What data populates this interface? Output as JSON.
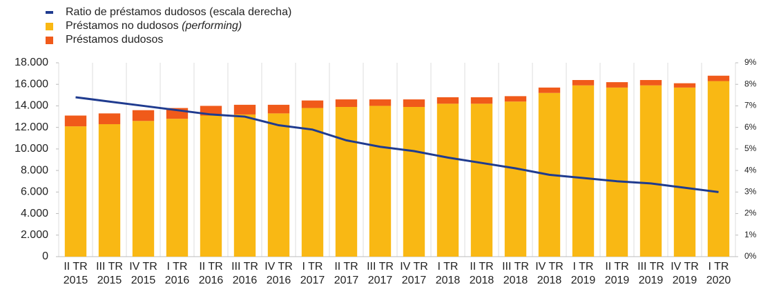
{
  "chart_data": {
    "type": "bar",
    "categories": [
      [
        "II TR",
        "2015"
      ],
      [
        "III TR",
        "2015"
      ],
      [
        "IV TR",
        "2015"
      ],
      [
        "I TR",
        "2016"
      ],
      [
        "II TR",
        "2016"
      ],
      [
        "III TR",
        "2016"
      ],
      [
        "IV TR",
        "2016"
      ],
      [
        "I TR",
        "2017"
      ],
      [
        "II TR",
        "2017"
      ],
      [
        "III TR",
        "2017"
      ],
      [
        "IV TR",
        "2017"
      ],
      [
        "I TR",
        "2018"
      ],
      [
        "II TR",
        "2018"
      ],
      [
        "III TR",
        "2018"
      ],
      [
        "IV TR",
        "2018"
      ],
      [
        "I TR",
        "2019"
      ],
      [
        "II TR",
        "2019"
      ],
      [
        "III TR",
        "2019"
      ],
      [
        "IV TR",
        "2019"
      ],
      [
        "I TR",
        "2020"
      ]
    ],
    "series": [
      {
        "name": "Ratio de préstamos dudosos (escala derecha)",
        "type": "line",
        "axis": "y2",
        "color": "#1f3b8f",
        "values": [
          7.4,
          7.2,
          7.0,
          6.8,
          6.6,
          6.5,
          6.1,
          5.9,
          5.4,
          5.1,
          4.9,
          4.6,
          4.35,
          4.1,
          3.8,
          3.65,
          3.5,
          3.4,
          3.2,
          3.0
        ]
      },
      {
        "name": "Préstamos no dudosos",
        "name_italic": "(performing)",
        "type": "bar",
        "color": "#f9b814",
        "values": [
          12100,
          12300,
          12600,
          12800,
          13100,
          13200,
          13300,
          13800,
          13900,
          14000,
          13900,
          14200,
          14200,
          14400,
          15200,
          15900,
          15700,
          15900,
          15700,
          16300
        ]
      },
      {
        "name": "Préstamos dudosos",
        "type": "bar",
        "color": "#f05a1a",
        "values": [
          1000,
          1000,
          1000,
          1000,
          900,
          900,
          800,
          700,
          700,
          600,
          700,
          600,
          600,
          500,
          500,
          500,
          500,
          500,
          400,
          500
        ]
      }
    ],
    "stacked": true,
    "ylim": [
      0,
      18000
    ],
    "yticks": [
      0,
      {
        "value": 2000,
        "label": "2.000"
      },
      {
        "value": 4000,
        "label": "4.000"
      },
      {
        "value": 6000,
        "label": "6.000"
      },
      {
        "value": 8000,
        "label": "8.000"
      },
      {
        "value": 10000,
        "label": "10.000"
      },
      {
        "value": 12000,
        "label": "12.000"
      },
      {
        "value": 14000,
        "label": "14.000"
      },
      {
        "value": 16000,
        "label": "16.000"
      },
      {
        "value": 18000,
        "label": "18.000"
      }
    ],
    "y2lim": [
      0,
      9
    ],
    "y2ticks": [
      {
        "value": 0,
        "label": "0%"
      },
      {
        "value": 1,
        "label": "1%"
      },
      {
        "value": 2,
        "label": "2%"
      },
      {
        "value": 3,
        "label": "3%"
      },
      {
        "value": 4,
        "label": "4%"
      },
      {
        "value": 5,
        "label": "5%"
      },
      {
        "value": 6,
        "label": "6%"
      },
      {
        "value": 7,
        "label": "7%"
      },
      {
        "value": 8,
        "label": "8%"
      },
      {
        "value": 9,
        "label": "9%"
      }
    ],
    "legend": "top-left"
  }
}
